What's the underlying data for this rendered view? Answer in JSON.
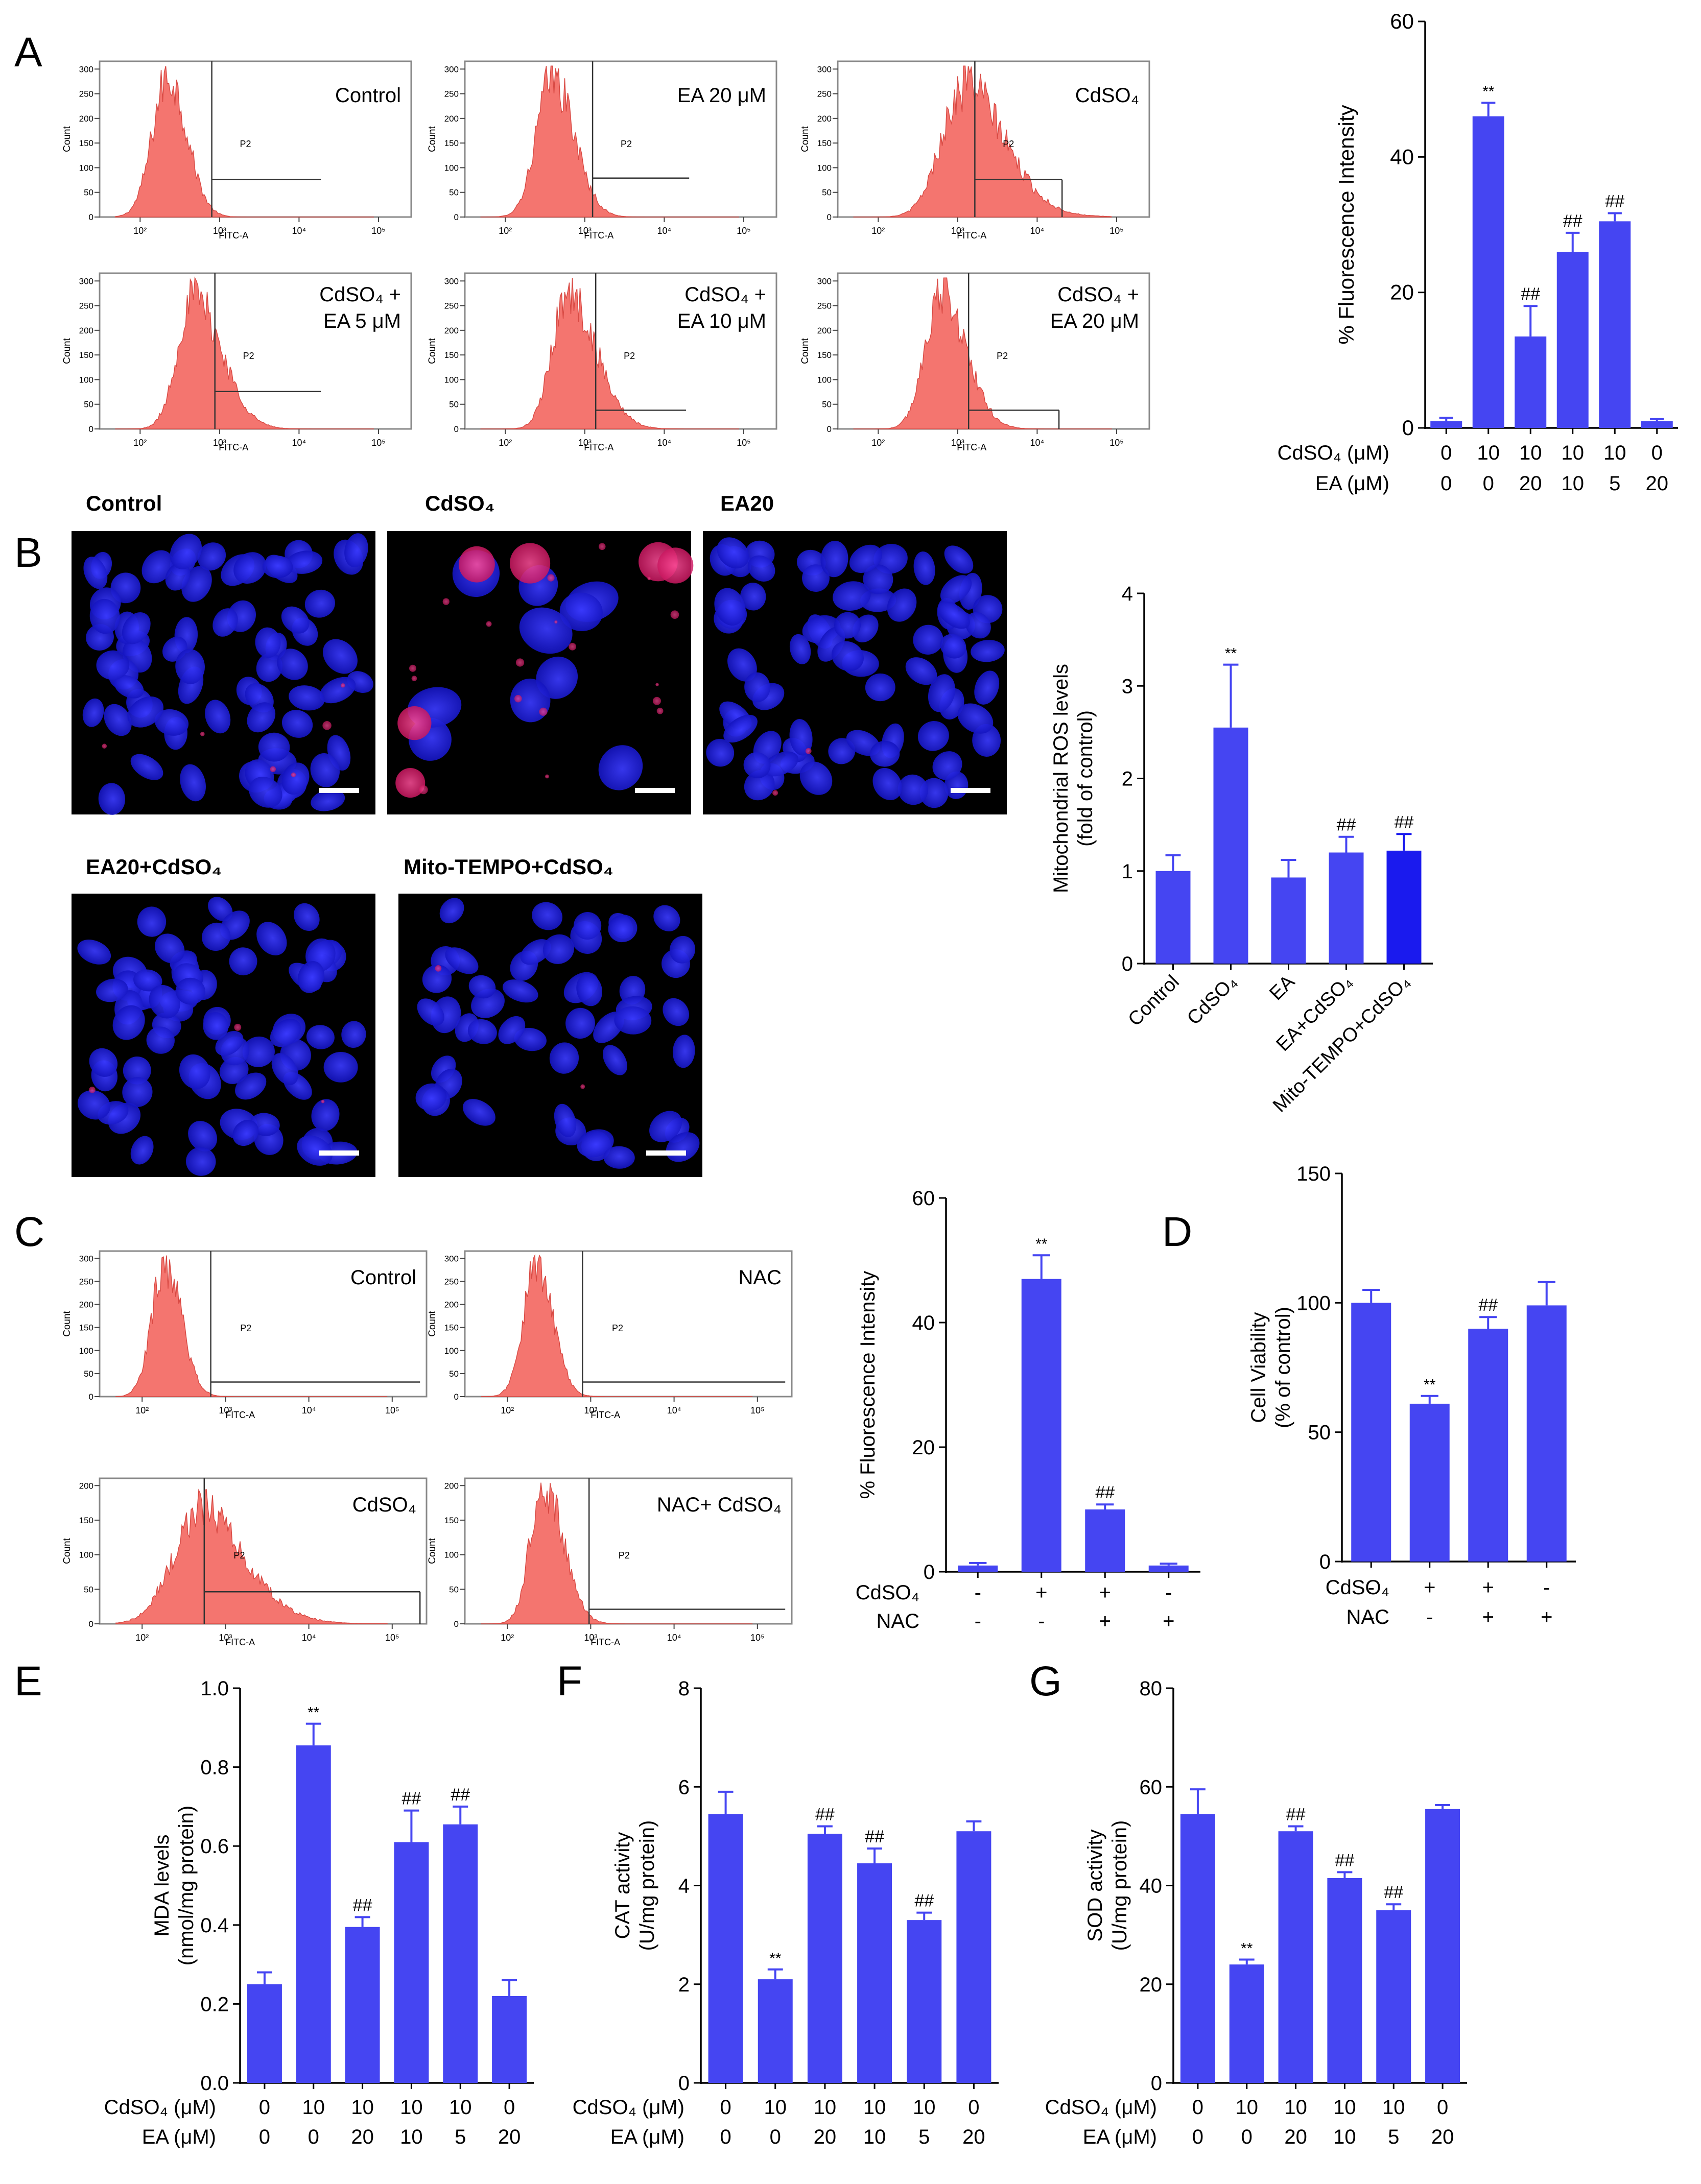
{
  "panel_letters": [
    "A",
    "B",
    "C",
    "D",
    "E",
    "F",
    "G"
  ],
  "colors": {
    "bar": "#4545F2",
    "bar_dark": "#1A1AEE",
    "histogram": "#F4756F",
    "nuclei": "#2323E6",
    "mito": "#E8236E"
  },
  "flow_common": {
    "y_label": "Count",
    "x_label": "FITC-A",
    "gate": "P2",
    "y_ticks_a": [
      "0",
      "50",
      "100",
      "150",
      "200",
      "250",
      "300"
    ],
    "y_ticks_c2": [
      "0",
      "50",
      "100",
      "150",
      "200"
    ],
    "x_ticks": [
      "10²",
      "10³",
      "10⁴",
      "10⁵"
    ]
  },
  "panel_a_flow": [
    {
      "label_lines": [
        "Control"
      ]
    },
    {
      "label_lines": [
        "EA 20 μM"
      ]
    },
    {
      "label_lines": [
        "CdSO₄"
      ]
    },
    {
      "label_lines": [
        "CdSO₄ +",
        "EA 5 μM"
      ]
    },
    {
      "label_lines": [
        "CdSO₄ +",
        "EA 10 μM"
      ]
    },
    {
      "label_lines": [
        "CdSO₄ +",
        "EA 20 μM"
      ]
    }
  ],
  "panel_c_flow": [
    {
      "label_lines": [
        "Control"
      ]
    },
    {
      "label_lines": [
        "NAC"
      ]
    },
    {
      "label_lines": [
        "CdSO₄"
      ]
    },
    {
      "label_lines": [
        "NAC+ CdSO₄"
      ]
    }
  ],
  "panel_b_images": [
    {
      "label": "Control"
    },
    {
      "label": "CdSO₄"
    },
    {
      "label": "EA20"
    },
    {
      "label": "EA20+CdSO₄"
    },
    {
      "label": "Mito-TEMPO+CdSO₄"
    }
  ],
  "chart_data": [
    {
      "id": "A",
      "type": "bar",
      "ylabel": "% Fluorescence Intensity",
      "ylim": [
        0,
        60
      ],
      "yticks": [
        0,
        20,
        40,
        60
      ],
      "values": [
        1.0,
        46.0,
        13.5,
        26.0,
        30.5,
        1.0
      ],
      "errors": [
        0.5,
        2.0,
        4.5,
        2.8,
        1.2,
        0.3
      ],
      "annotations": [
        "",
        "**",
        "##",
        "##",
        "##",
        ""
      ],
      "treatment_rows": [
        {
          "label": "CdSO₄ (μM)",
          "values": [
            "0",
            "10",
            "10",
            "10",
            "10",
            "0"
          ]
        },
        {
          "label": "EA (μM)",
          "values": [
            "0",
            "0",
            "20",
            "10",
            "5",
            "20"
          ]
        }
      ]
    },
    {
      "id": "B",
      "type": "bar",
      "ylabel": "Mitochondrial ROS levels",
      "ylabel2": "(fold of control)",
      "ylim": [
        0,
        4
      ],
      "yticks": [
        0,
        1,
        2,
        3,
        4
      ],
      "categories": [
        "Control",
        "CdSO₄",
        "EA",
        "EA+CdSO₄",
        "Mito-TEMPO+CdSO₄"
      ],
      "values": [
        1.0,
        2.55,
        0.93,
        1.2,
        1.22
      ],
      "errors": [
        0.17,
        0.68,
        0.19,
        0.17,
        0.18
      ],
      "annotations": [
        "",
        "**",
        "",
        "##",
        "##"
      ]
    },
    {
      "id": "C",
      "type": "bar",
      "ylabel": "% Fluorescence Intensity",
      "ylim": [
        0,
        60
      ],
      "yticks": [
        0,
        20,
        40,
        60
      ],
      "values": [
        1.0,
        47.0,
        10.0,
        1.0
      ],
      "errors": [
        0.4,
        3.8,
        0.8,
        0.3
      ],
      "annotations": [
        "",
        "**",
        "##",
        ""
      ],
      "treatment_rows": [
        {
          "label": "CdSO₄",
          "values": [
            "-",
            "+",
            "+",
            "-"
          ]
        },
        {
          "label": "NAC",
          "values": [
            "-",
            "-",
            "+",
            "+"
          ]
        }
      ]
    },
    {
      "id": "D",
      "type": "bar",
      "ylabel": "Cell Viability",
      "ylabel2": "(% of control)",
      "ylim": [
        0,
        150
      ],
      "yticks": [
        0,
        50,
        100,
        150
      ],
      "values": [
        100,
        61,
        90,
        99
      ],
      "errors": [
        5,
        3,
        4.5,
        9
      ],
      "annotations": [
        "",
        "**",
        "##",
        ""
      ],
      "treatment_rows": [
        {
          "label": "CdSO₄",
          "values": [
            "-",
            "+",
            "+",
            "-"
          ]
        },
        {
          "label": "NAC",
          "values": [
            "-",
            "-",
            "+",
            "+"
          ]
        }
      ]
    },
    {
      "id": "E",
      "type": "bar",
      "ylabel": "MDA levels",
      "ylabel2": "(nmol/mg protein)",
      "ylim": [
        0,
        1.0
      ],
      "yticks": [
        "0.0",
        "0.2",
        "0.4",
        "0.6",
        "0.8",
        "1.0"
      ],
      "values": [
        0.25,
        0.855,
        0.395,
        0.61,
        0.655,
        0.22
      ],
      "errors": [
        0.03,
        0.055,
        0.025,
        0.08,
        0.045,
        0.04
      ],
      "annotations": [
        "",
        "**",
        "##",
        "##",
        "##",
        ""
      ],
      "treatment_rows": [
        {
          "label": "CdSO₄ (μM)",
          "values": [
            "0",
            "10",
            "10",
            "10",
            "10",
            "0"
          ]
        },
        {
          "label": "EA (μM)",
          "values": [
            "0",
            "0",
            "20",
            "10",
            "5",
            "20"
          ]
        }
      ]
    },
    {
      "id": "F",
      "type": "bar",
      "ylabel": "CAT activity",
      "ylabel2": "(U/mg protein)",
      "ylim": [
        0,
        8
      ],
      "yticks": [
        0,
        2,
        4,
        6,
        8
      ],
      "values": [
        5.45,
        2.1,
        5.05,
        4.45,
        3.3,
        5.1
      ],
      "errors": [
        0.45,
        0.2,
        0.15,
        0.3,
        0.15,
        0.2
      ],
      "annotations": [
        "",
        "**",
        "##",
        "##",
        "##",
        ""
      ],
      "treatment_rows": [
        {
          "label": "CdSO₄ (μM)",
          "values": [
            "0",
            "10",
            "10",
            "10",
            "10",
            "0"
          ]
        },
        {
          "label": "EA (μM)",
          "values": [
            "0",
            "0",
            "20",
            "10",
            "5",
            "20"
          ]
        }
      ]
    },
    {
      "id": "G",
      "type": "bar",
      "ylabel": "SOD activity",
      "ylabel2": "(U/mg protein)",
      "ylim": [
        0,
        80
      ],
      "yticks": [
        0,
        20,
        40,
        60,
        80
      ],
      "values": [
        54.5,
        24,
        51,
        41.5,
        35,
        55.5
      ],
      "errors": [
        5,
        1,
        1,
        1.2,
        1.2,
        0.8
      ],
      "annotations": [
        "",
        "**",
        "##",
        "##",
        "##",
        ""
      ],
      "treatment_rows": [
        {
          "label": "CdSO₄ (μM)",
          "values": [
            "0",
            "10",
            "10",
            "10",
            "10",
            "0"
          ]
        },
        {
          "label": "EA (μM)",
          "values": [
            "0",
            "0",
            "20",
            "10",
            "5",
            "20"
          ]
        }
      ]
    }
  ]
}
